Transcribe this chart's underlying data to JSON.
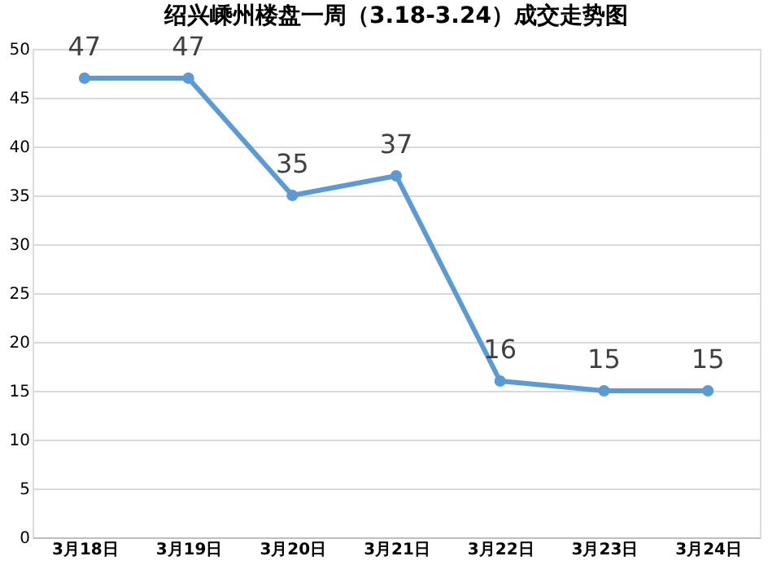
{
  "chart_data": {
    "type": "line",
    "title": "绍兴嵊州楼盘一周（3.18-3.24）成交走势图",
    "categories": [
      "3月18日",
      "3月19日",
      "3月20日",
      "3月21日",
      "3月22日",
      "3月23日",
      "3月24日"
    ],
    "series": [
      {
        "color": "#5b9bd5",
        "values": [
          47,
          47,
          35,
          37,
          16,
          15,
          15
        ]
      }
    ],
    "ylim": [
      0,
      50
    ],
    "yticks": [
      0,
      5,
      10,
      15,
      20,
      25,
      30,
      35,
      40,
      45,
      50
    ],
    "grid": "y",
    "marker": "circle",
    "line_style": "solid",
    "data_labels": true
  }
}
